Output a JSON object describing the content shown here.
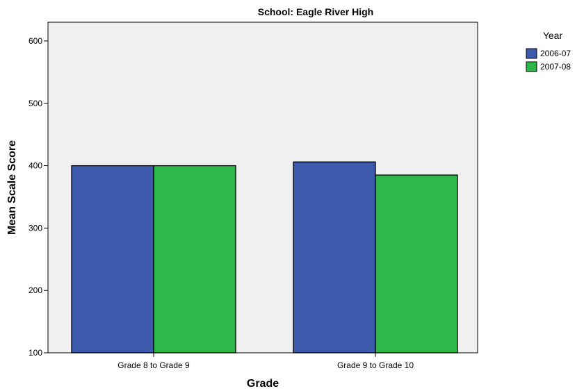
{
  "chart_data": {
    "type": "bar",
    "title": "School: Eagle River High",
    "xlabel": "Grade",
    "ylabel": "Mean Scale Score",
    "categories": [
      "Grade 8 to Grade 9",
      "Grade 9 to Grade 10"
    ],
    "series": [
      {
        "name": "2006-07",
        "values": [
          400,
          406
        ],
        "color": "#3d59ab"
      },
      {
        "name": "2007-08",
        "values": [
          400,
          385
        ],
        "color": "#2fb84a"
      }
    ],
    "ylim": [
      100,
      630
    ],
    "yticks": [
      100,
      200,
      300,
      400,
      500,
      600
    ],
    "grid": false,
    "plot_background": "#f0f0f0",
    "legend": {
      "title": "Year",
      "placement": "top-right-outside"
    }
  }
}
